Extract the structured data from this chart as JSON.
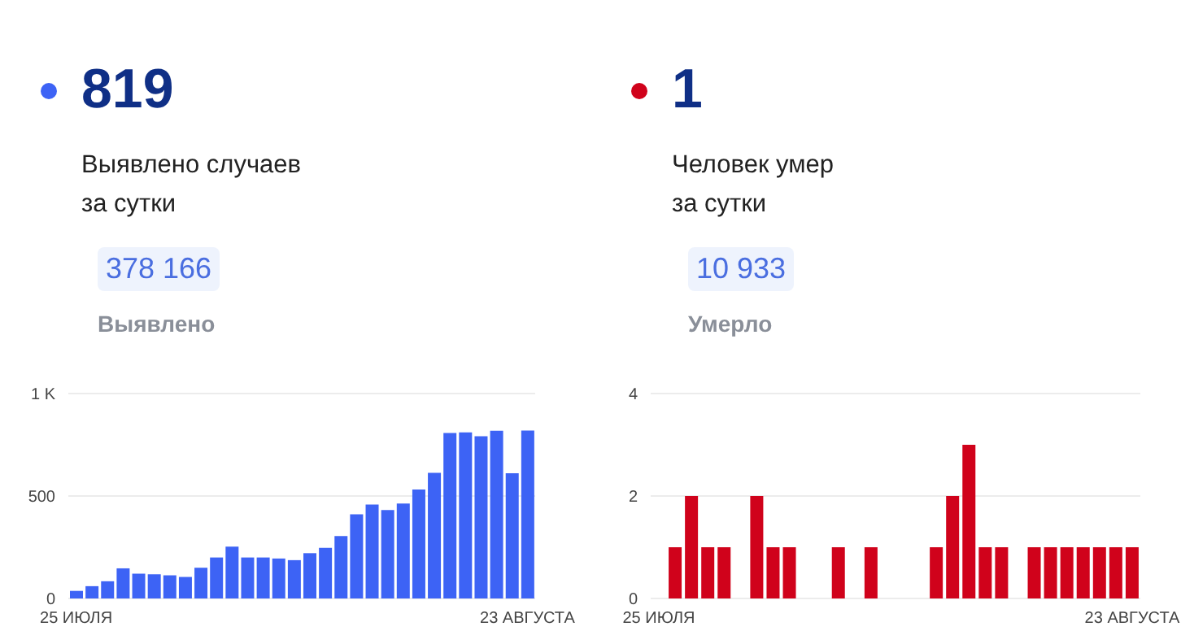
{
  "chart_data": [
    {
      "type": "bar",
      "title": "819",
      "subtitle": "Выявлено случаев\nза сутки",
      "annotations": [
        "378 166",
        "Выявлено"
      ],
      "categories": [
        "25 ИЮЛЯ",
        null,
        null,
        null,
        null,
        null,
        null,
        null,
        null,
        null,
        null,
        null,
        null,
        null,
        null,
        null,
        null,
        null,
        null,
        null,
        null,
        null,
        null,
        null,
        null,
        null,
        null,
        null,
        null,
        "23 АВГУСТА"
      ],
      "values": [
        37,
        60,
        84,
        147,
        121,
        118,
        113,
        105,
        150,
        200,
        253,
        200,
        200,
        195,
        187,
        221,
        247,
        305,
        411,
        458,
        432,
        463,
        532,
        613,
        808,
        811,
        792,
        818,
        611,
        819
      ],
      "color": "#3d63f5",
      "ylim": [
        0,
        1000
      ],
      "yticks": [
        0,
        500,
        {
          "value": 1000,
          "label": "1 K"
        }
      ],
      "grid": "y"
    },
    {
      "type": "bar",
      "title": "1",
      "subtitle": "Человек умер\nза сутки",
      "annotations": [
        "10 933",
        "Умерло"
      ],
      "categories": [
        "25 ИЮЛЯ",
        null,
        null,
        null,
        null,
        null,
        null,
        null,
        null,
        null,
        null,
        null,
        null,
        null,
        null,
        null,
        null,
        null,
        null,
        null,
        null,
        null,
        null,
        null,
        null,
        null,
        null,
        null,
        null,
        "23 АВГУСТА"
      ],
      "values": [
        0,
        1,
        2,
        1,
        1,
        0,
        2,
        1,
        1,
        0,
        0,
        1,
        0,
        1,
        0,
        0,
        0,
        1,
        2,
        3,
        1,
        1,
        0,
        1,
        1,
        1,
        1,
        1,
        1,
        1
      ],
      "color": "#d0021b",
      "ylim": [
        0,
        4
      ],
      "yticks": [
        0,
        2,
        4
      ],
      "grid": "y"
    }
  ]
}
